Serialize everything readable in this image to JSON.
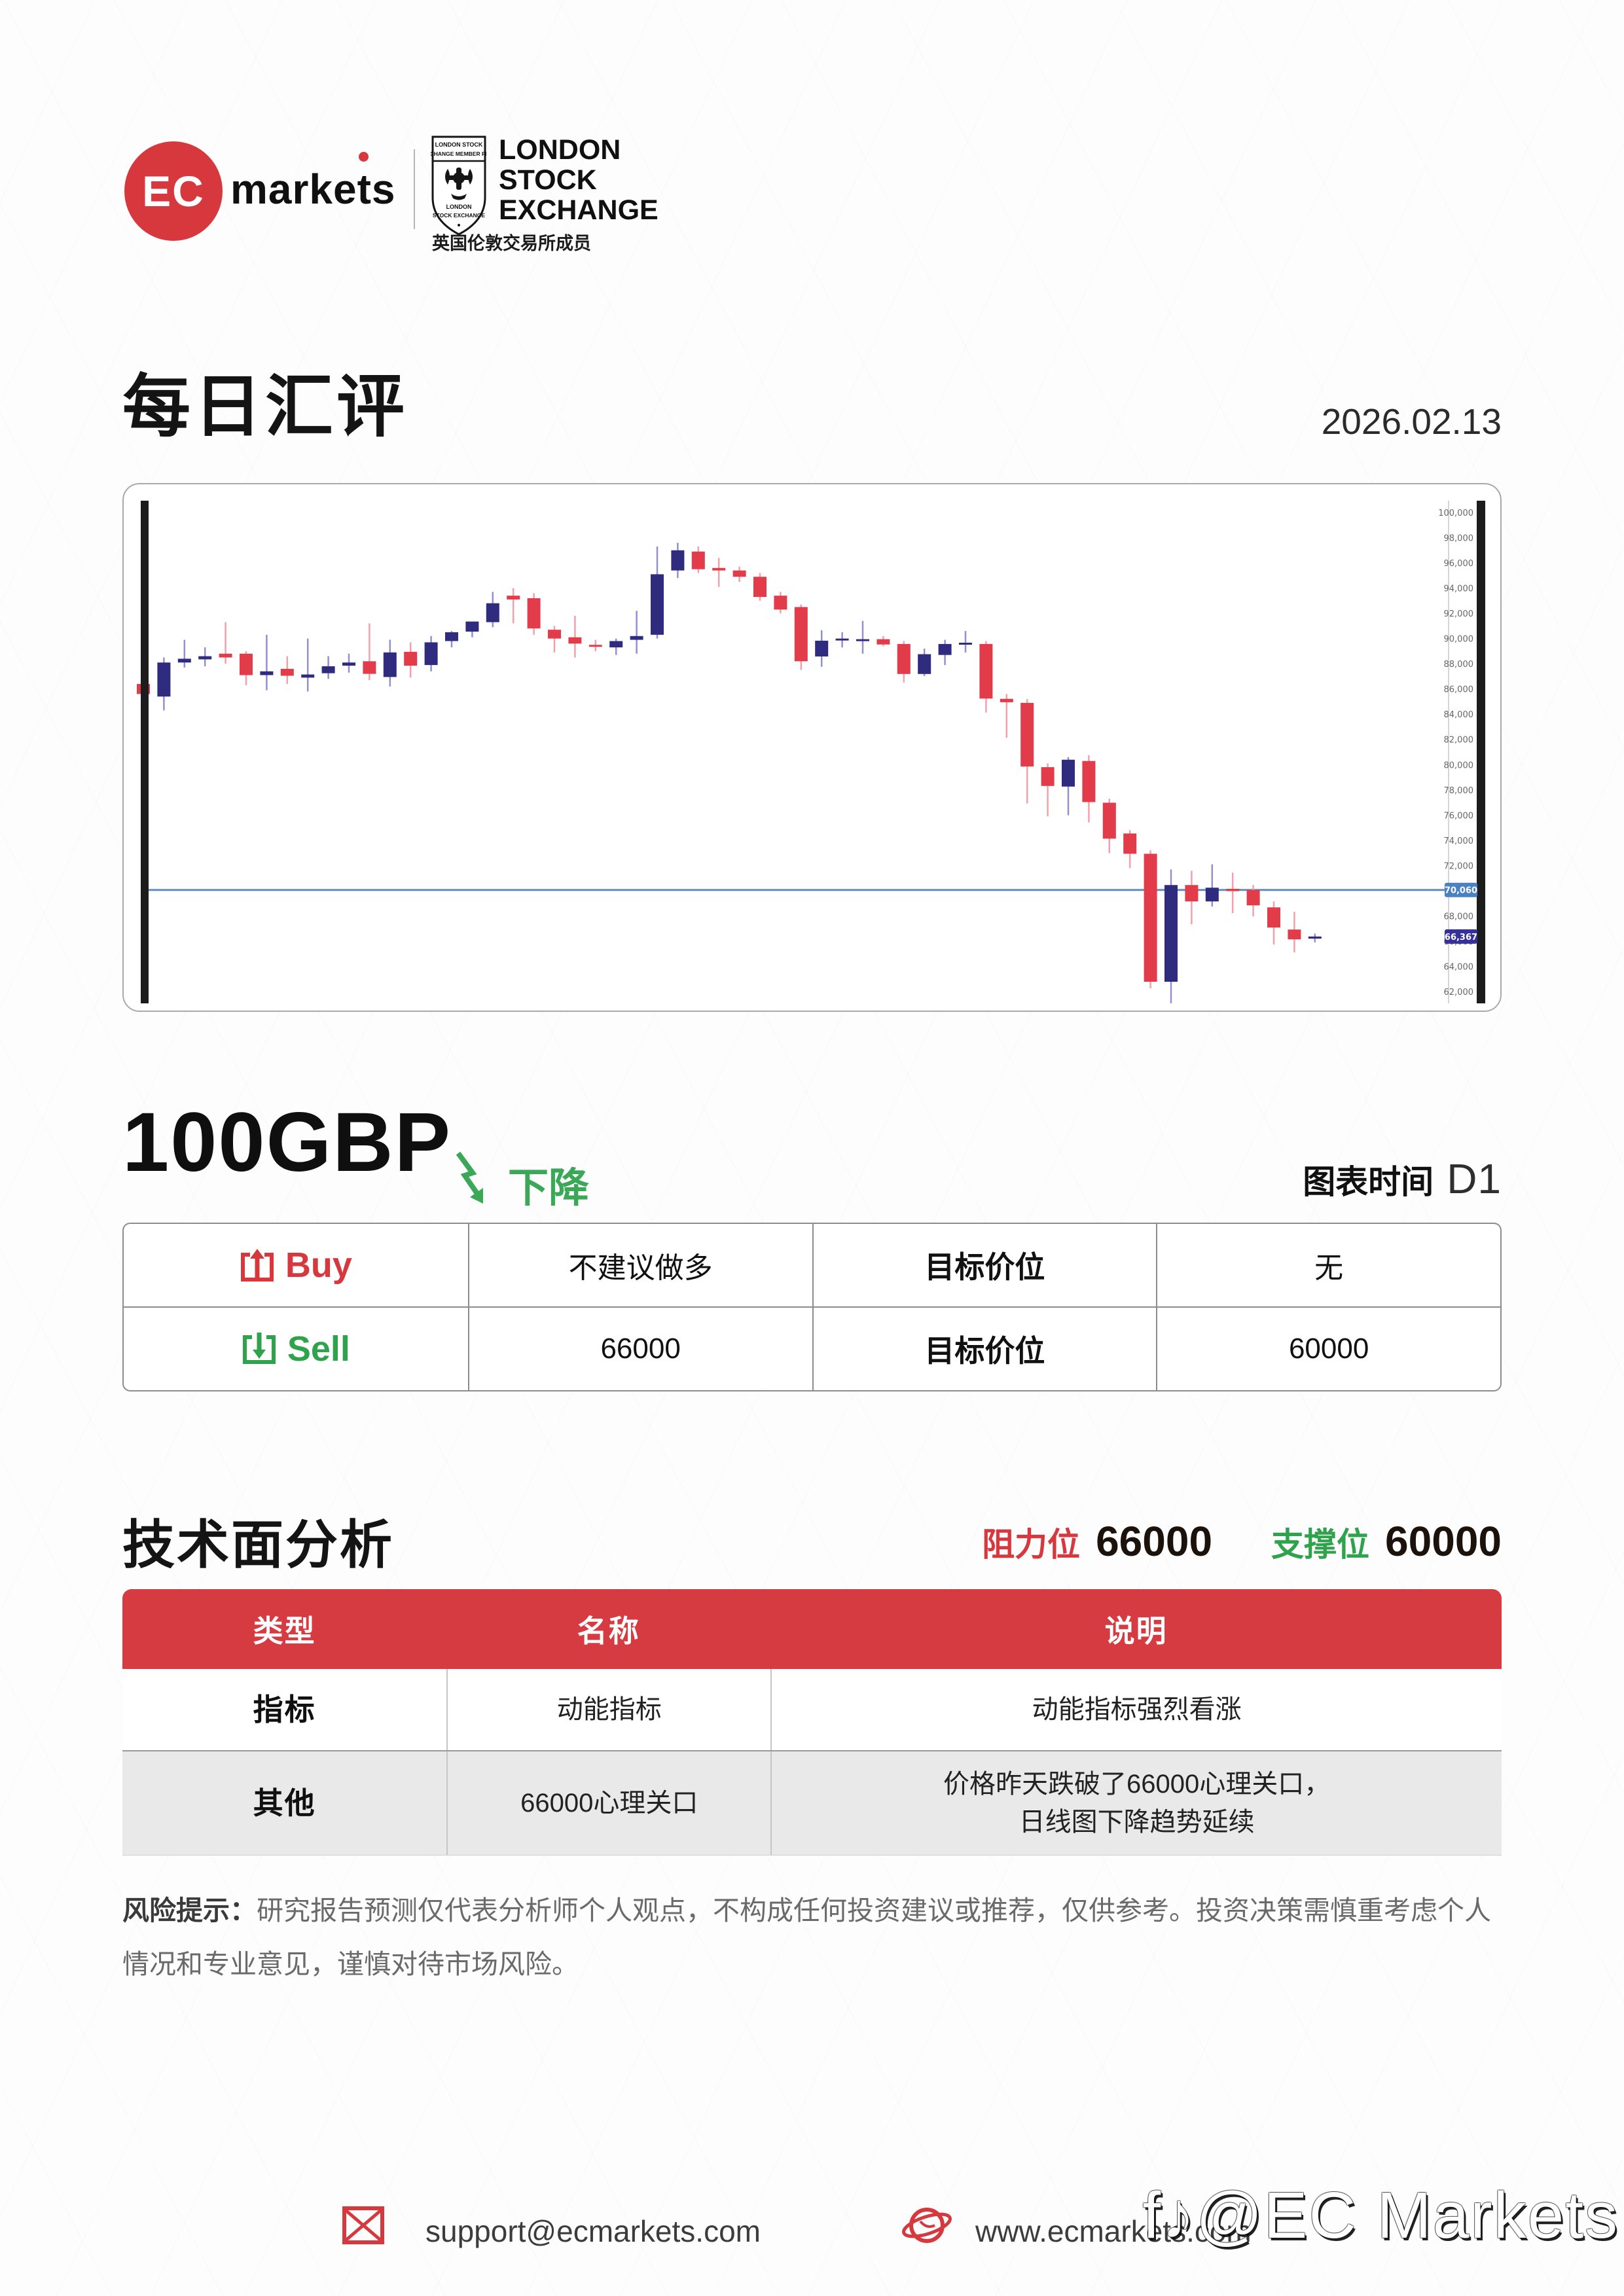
{
  "colors": {
    "brand_red": "#d6383e",
    "green": "#2fa24c",
    "trend_green": "#3aa857",
    "candle_up": "#2f2c80",
    "candle_down": "#e23c4b",
    "wick_up": "#938fd0",
    "wick_down": "#f2a0a9",
    "price_line": "#5e8cc8",
    "price_line_tag": "#4a80c4",
    "last_price_tag": "#363099",
    "table_header_red": "#d63b42"
  },
  "header": {
    "brand_ec": "EC",
    "brand_markets": "markets",
    "crest_top_lines": [
      "LONDON STOCK",
      "EXCHANGE MEMBER FIRM"
    ],
    "crest_bottom_lines": [
      "LONDON",
      "STOCK EXCHANGE"
    ],
    "lse_lines": [
      "LONDON",
      "STOCK",
      "EXCHANGE"
    ],
    "lse_cn": "英国伦敦交易所成员"
  },
  "title": {
    "text": "每日汇评",
    "date": "2026.02.13"
  },
  "chart_data": {
    "type": "candlestick",
    "title": "",
    "ylim": [
      61000,
      101500
    ],
    "grid": false,
    "y_ticks": [
      "100,000",
      "98,000",
      "96,000",
      "94,000",
      "92,000",
      "90,000",
      "88,000",
      "86,000",
      "84,000",
      "82,000",
      "80,000",
      "78,000",
      "76,000",
      "74,000",
      "72,000",
      "70,000",
      "68,000",
      "66,000",
      "64,000",
      "62,000"
    ],
    "price_line": {
      "value": 70060,
      "label": "70,060"
    },
    "last_price": {
      "value": 66367,
      "label": "66,367"
    },
    "candles_ohlc": [
      [
        86400,
        86500,
        85300,
        85600
      ],
      [
        85400,
        88500,
        84300,
        88100
      ],
      [
        88100,
        89900,
        87700,
        88400
      ],
      [
        88350,
        89300,
        87800,
        88600
      ],
      [
        88800,
        91300,
        88000,
        88500
      ],
      [
        88800,
        89000,
        86300,
        87100
      ],
      [
        87100,
        90300,
        85900,
        87400
      ],
      [
        87600,
        88600,
        86400,
        87050
      ],
      [
        86900,
        90000,
        85800,
        87150
      ],
      [
        87250,
        88600,
        86800,
        87800
      ],
      [
        87850,
        88800,
        87300,
        88100
      ],
      [
        88200,
        91200,
        86700,
        87200
      ],
      [
        86950,
        89900,
        86200,
        88900
      ],
      [
        88950,
        89700,
        86900,
        87850
      ],
      [
        87900,
        90200,
        87400,
        89700
      ],
      [
        89800,
        90600,
        89300,
        90500
      ],
      [
        90550,
        91200,
        90100,
        91350
      ],
      [
        91300,
        93700,
        90900,
        92800
      ],
      [
        93400,
        94000,
        91200,
        93100
      ],
      [
        93200,
        93600,
        90300,
        90800
      ],
      [
        90700,
        91000,
        88900,
        90000
      ],
      [
        90100,
        91800,
        88500,
        89600
      ],
      [
        89500,
        89900,
        89000,
        89400
      ],
      [
        89300,
        90000,
        88700,
        89800
      ],
      [
        89900,
        92200,
        88800,
        90200
      ],
      [
        90300,
        97300,
        90000,
        95100
      ],
      [
        95400,
        97600,
        94800,
        97000
      ],
      [
        96900,
        97300,
        95200,
        95500
      ],
      [
        95600,
        96400,
        94100,
        95400
      ],
      [
        95400,
        95700,
        94500,
        94900
      ],
      [
        94900,
        95200,
        93000,
        93300
      ],
      [
        93400,
        93700,
        92000,
        92300
      ],
      [
        92500,
        92700,
        87500,
        88200
      ],
      [
        88580,
        90660,
        87760,
        89830
      ],
      [
        89850,
        90500,
        89300,
        90000
      ],
      [
        89900,
        91400,
        88800,
        89950
      ],
      [
        89950,
        90200,
        89400,
        89530
      ],
      [
        89570,
        89800,
        86520,
        87190
      ],
      [
        87190,
        89200,
        87030,
        88760
      ],
      [
        88700,
        89900,
        87900,
        89570
      ],
      [
        89600,
        90600,
        88900,
        89670
      ],
      [
        89570,
        89800,
        84130,
        85240
      ],
      [
        85220,
        85600,
        82130,
        84950
      ],
      [
        84900,
        85200,
        76920,
        79850
      ],
      [
        79800,
        80100,
        75900,
        78310
      ],
      [
        78260,
        80600,
        75980,
        80390
      ],
      [
        80290,
        80750,
        75420,
        77030
      ],
      [
        76980,
        77300,
        72980,
        74130
      ],
      [
        74540,
        74800,
        71800,
        72930
      ],
      [
        72930,
        73200,
        62260,
        62780
      ],
      [
        62780,
        71690,
        61070,
        70450
      ],
      [
        70450,
        71580,
        67340,
        69150
      ],
      [
        69150,
        72100,
        68740,
        70240
      ],
      [
        70150,
        71430,
        68220,
        69970
      ],
      [
        70060,
        70450,
        67960,
        68840
      ],
      [
        68680,
        69150,
        65730,
        67080
      ],
      [
        66920,
        68320,
        65110,
        66140
      ],
      [
        66200,
        66600,
        65900,
        66367
      ]
    ]
  },
  "instrument": {
    "name": "100GBP",
    "trend_label": "下降",
    "timeframe_label": "图表时间",
    "timeframe_value": "D1"
  },
  "signal_table": {
    "rows": [
      {
        "side_label": "Buy",
        "advice": "不建议做多",
        "target_label": "目标价位",
        "target": "无"
      },
      {
        "side_label": "Sell",
        "advice": "66000",
        "target_label": "目标价位",
        "target": "60000"
      }
    ]
  },
  "tech": {
    "heading": "技术面分析",
    "resistance_label": "阻力位",
    "resistance": "66000",
    "support_label": "支撑位",
    "support": "60000"
  },
  "tech_table": {
    "headers": [
      "类型",
      "名称",
      "说明"
    ],
    "rows": [
      {
        "type": "指标",
        "name": "动能指标",
        "desc_line1": "动能指标强烈看涨",
        "desc_line2": ""
      },
      {
        "type": "其他",
        "name": "66000心理关口",
        "desc_line1": "价格昨天跌破了66000心理关口，",
        "desc_line2": "日线图下降趋势延续"
      }
    ]
  },
  "risk": {
    "label": "风险提示：",
    "text": "研究报告预测仅代表分析师个人观点，不构成任何投资建议或推荐，仅供参考。投资决策需慎重考虑个人情况和专业意见，谨慎对待市场风险。"
  },
  "footer": {
    "email": "support@ecmarkets.com",
    "website": "www.ecmarkets.com",
    "watermark": "f♪@EC Markets"
  }
}
